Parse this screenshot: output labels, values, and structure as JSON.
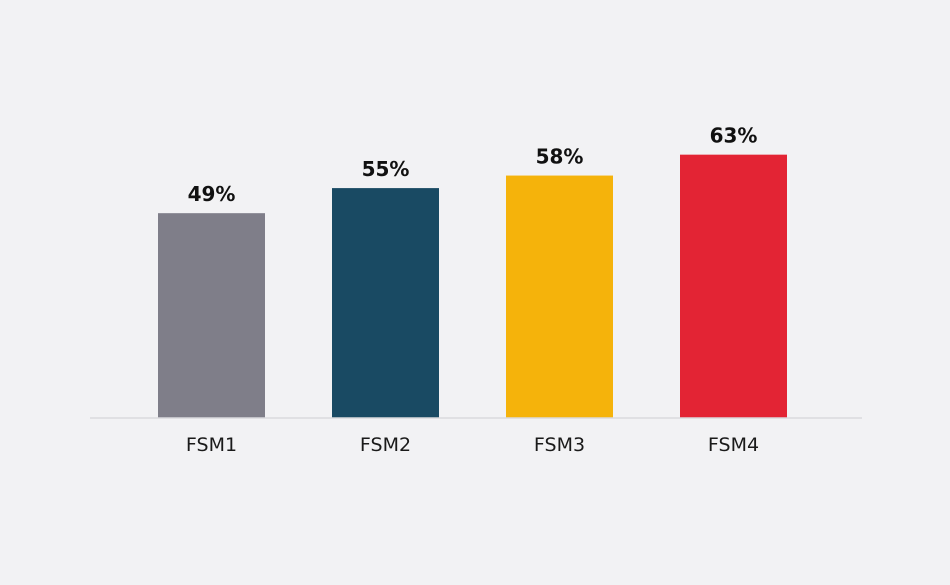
{
  "chart_data": {
    "type": "bar",
    "categories": [
      "FSM1",
      "FSM2",
      "FSM3",
      "FSM4"
    ],
    "values": [
      49,
      55,
      58,
      63
    ],
    "value_labels": [
      "49%",
      "55%",
      "58%",
      "63%"
    ],
    "colors": [
      "#7f7e89",
      "#194a63",
      "#f5b30b",
      "#e32434"
    ],
    "ylim": [
      0,
      100
    ],
    "grid": false,
    "legend": "none"
  },
  "theme": {
    "background": "#f2f2f4",
    "baseline": "#d9d9dd"
  }
}
